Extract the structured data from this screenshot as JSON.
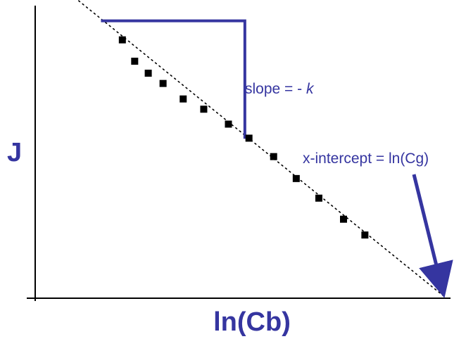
{
  "chart_data": {
    "type": "scatter",
    "title": "",
    "xlabel": "ln(Cb)",
    "ylabel": "J",
    "xlim": [
      0,
      10
    ],
    "ylim": [
      0,
      10
    ],
    "grid": false,
    "legend": "none",
    "ticks": "none",
    "series": [
      {
        "points": [
          {
            "x": 2.12,
            "y": 8.83
          },
          {
            "x": 2.42,
            "y": 8.1
          },
          {
            "x": 2.75,
            "y": 7.69
          },
          {
            "x": 3.11,
            "y": 7.34
          },
          {
            "x": 3.6,
            "y": 6.81
          },
          {
            "x": 4.1,
            "y": 6.46
          },
          {
            "x": 4.7,
            "y": 5.95
          },
          {
            "x": 5.2,
            "y": 5.47
          },
          {
            "x": 5.8,
            "y": 4.84
          },
          {
            "x": 6.35,
            "y": 4.09
          },
          {
            "x": 6.9,
            "y": 3.42
          },
          {
            "x": 7.5,
            "y": 2.7
          },
          {
            "x": 8.02,
            "y": 2.16
          }
        ]
      }
    ],
    "trend_line": {
      "style": "dotted",
      "from": {
        "x": 0.5,
        "y": 10.8
      },
      "to": {
        "x": 10.0,
        "y": 0.0
      }
    },
    "slope_triangle": {
      "x1": 1.6,
      "x2": 5.1,
      "y_top": 9.48,
      "y_bottom": 5.45,
      "label": "slope = - ",
      "label_k": "k"
    },
    "intercept_annotation": {
      "text": "x-intercept = ln(Cg)",
      "at": {
        "x": 10.0,
        "y": 0.0
      }
    }
  },
  "colors": {
    "accent": "#3535a0",
    "points": "#000000",
    "axes": "#000000"
  }
}
